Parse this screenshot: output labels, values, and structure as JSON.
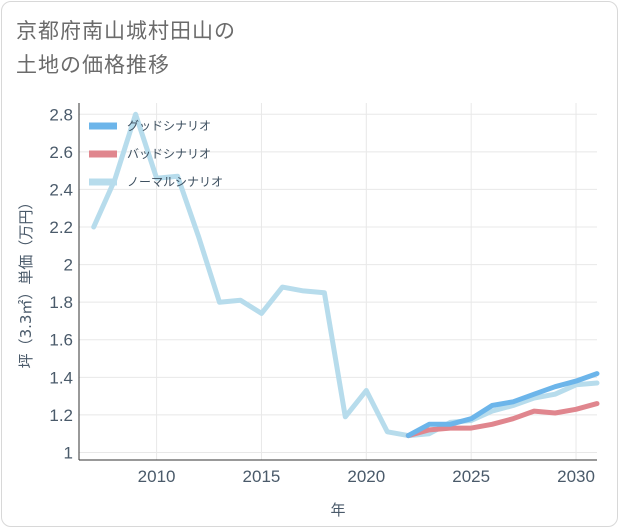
{
  "title": {
    "line1": "京都府南山城村田山の",
    "line2": "土地の価格推移"
  },
  "chart_data": {
    "type": "line",
    "xlabel": "年",
    "ylabel": "坪（3.3㎡）単価（万円）",
    "xlim": [
      2006.3,
      2031
    ],
    "ylim": [
      0.96,
      2.86
    ],
    "x_ticks": [
      2010,
      2015,
      2020,
      2025,
      2030
    ],
    "y_ticks": [
      1,
      1.2,
      1.4,
      1.6,
      1.8,
      2,
      2.2,
      2.4,
      2.6,
      2.8
    ],
    "x_tick_labels": [
      "2010",
      "2015",
      "2020",
      "2025",
      "2030"
    ],
    "y_tick_labels": [
      "1",
      "1.2",
      "1.4",
      "1.6",
      "1.8",
      "2",
      "2.2",
      "2.4",
      "2.6",
      "2.8"
    ],
    "grid": true,
    "legend_position": "top-left",
    "series": [
      {
        "name": "グッドシナリオ",
        "color": "#6cb5ea",
        "x": [
          2022,
          2023,
          2024,
          2025,
          2026,
          2027,
          2028,
          2029,
          2030,
          2031
        ],
        "values": [
          1.09,
          1.15,
          1.15,
          1.18,
          1.25,
          1.27,
          1.31,
          1.35,
          1.38,
          1.42
        ]
      },
      {
        "name": "バッドシナリオ",
        "color": "#e0868e",
        "x": [
          2022,
          2023,
          2024,
          2025,
          2026,
          2027,
          2028,
          2029,
          2030,
          2031
        ],
        "values": [
          1.09,
          1.12,
          1.13,
          1.13,
          1.15,
          1.18,
          1.22,
          1.21,
          1.23,
          1.26
        ]
      },
      {
        "name": "ノーマルシナリオ",
        "color": "#b7dcec",
        "x": [
          2007,
          2008,
          2009,
          2010,
          2011,
          2012,
          2013,
          2014,
          2015,
          2016,
          2017,
          2018,
          2019,
          2020,
          2021,
          2022,
          2023,
          2024,
          2025,
          2026,
          2027,
          2028,
          2029,
          2030,
          2031
        ],
        "values": [
          2.2,
          2.45,
          2.8,
          2.46,
          2.47,
          2.15,
          1.8,
          1.81,
          1.74,
          1.88,
          1.86,
          1.85,
          1.19,
          1.33,
          1.11,
          1.09,
          1.1,
          1.16,
          1.17,
          1.22,
          1.25,
          1.29,
          1.31,
          1.36,
          1.37
        ]
      }
    ]
  }
}
